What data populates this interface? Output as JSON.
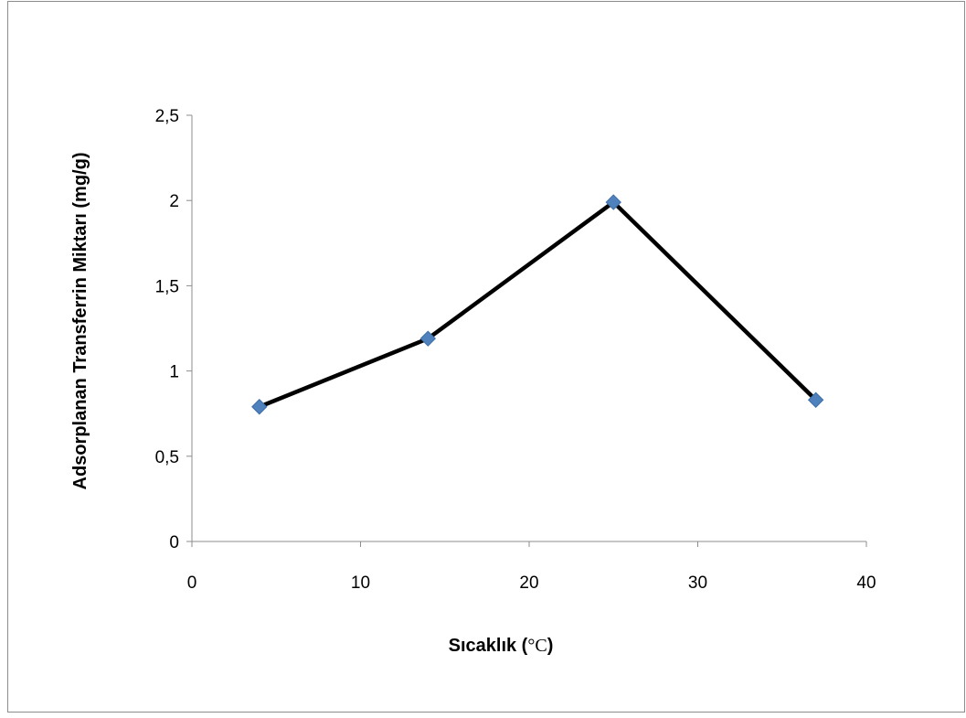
{
  "chart_data": {
    "type": "line",
    "title": "",
    "xlabel_prefix": "Sıcaklık (",
    "xlabel_unit": "°C",
    "xlabel_suffix": ")",
    "ylabel": "Adsorplanan Transferrin  Miktarı  (mg/g)",
    "x_ticks": [
      "0",
      "10",
      "20",
      "30",
      "40"
    ],
    "y_ticks": [
      "0",
      "0,5",
      "1",
      "1,5",
      "2",
      "2,5"
    ],
    "xlim": [
      0,
      40
    ],
    "ylim": [
      0,
      2.5
    ],
    "grid": false,
    "series": [
      {
        "x": [
          4,
          14,
          25,
          37
        ],
        "y": [
          0.79,
          1.19,
          1.99,
          0.83
        ],
        "line_color": "#000000",
        "marker": "diamond",
        "marker_color": "#4f81bd"
      }
    ]
  }
}
